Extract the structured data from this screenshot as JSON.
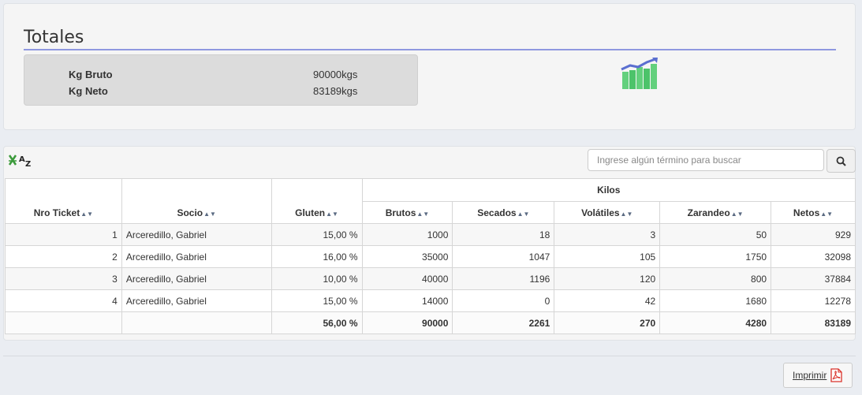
{
  "totales": {
    "title": "Totales",
    "rows": [
      {
        "label": "Kg Bruto",
        "value": "90000kgs"
      },
      {
        "label": "Kg Neto",
        "value": "83189kgs"
      }
    ],
    "chart_icon": "bar-chart-growth-icon"
  },
  "grid": {
    "sort_icon": "sort-az-icon",
    "search": {
      "placeholder": "Ingrese algún término para buscar",
      "value": ""
    },
    "search_icon": "search-icon",
    "group_header": "Kilos",
    "columns": [
      "Nro Ticket",
      "Socio",
      "Gluten",
      "Brutos",
      "Secados",
      "Volátiles",
      "Zarandeo",
      "Netos"
    ],
    "sort_arrows": "▲▼",
    "rows": [
      {
        "nro": "1",
        "socio": "Arceredillo, Gabriel",
        "gluten": "15,00 %",
        "brutos": "1000",
        "secados": "18",
        "volatiles": "3",
        "zarandeo": "50",
        "netos": "929"
      },
      {
        "nro": "2",
        "socio": "Arceredillo, Gabriel",
        "gluten": "16,00 %",
        "brutos": "35000",
        "secados": "1047",
        "volatiles": "105",
        "zarandeo": "1750",
        "netos": "32098"
      },
      {
        "nro": "3",
        "socio": "Arceredillo, Gabriel",
        "gluten": "10,00 %",
        "brutos": "40000",
        "secados": "1196",
        "volatiles": "120",
        "zarandeo": "800",
        "netos": "37884"
      },
      {
        "nro": "4",
        "socio": "Arceredillo, Gabriel",
        "gluten": "15,00 %",
        "brutos": "14000",
        "secados": "0",
        "volatiles": "42",
        "zarandeo": "1680",
        "netos": "12278"
      }
    ],
    "footer": {
      "nro": "",
      "socio": "",
      "gluten": "56,00 %",
      "brutos": "90000",
      "secados": "2261",
      "volatiles": "270",
      "zarandeo": "4280",
      "netos": "83189"
    }
  },
  "print": {
    "label": "Imprimir",
    "icon": "pdf-icon"
  },
  "colors": {
    "title_underline": "#8f98e0",
    "chart_green": "#4cc36a",
    "chart_arrow": "#5b6fd0",
    "pdf_red": "#d9322b"
  }
}
